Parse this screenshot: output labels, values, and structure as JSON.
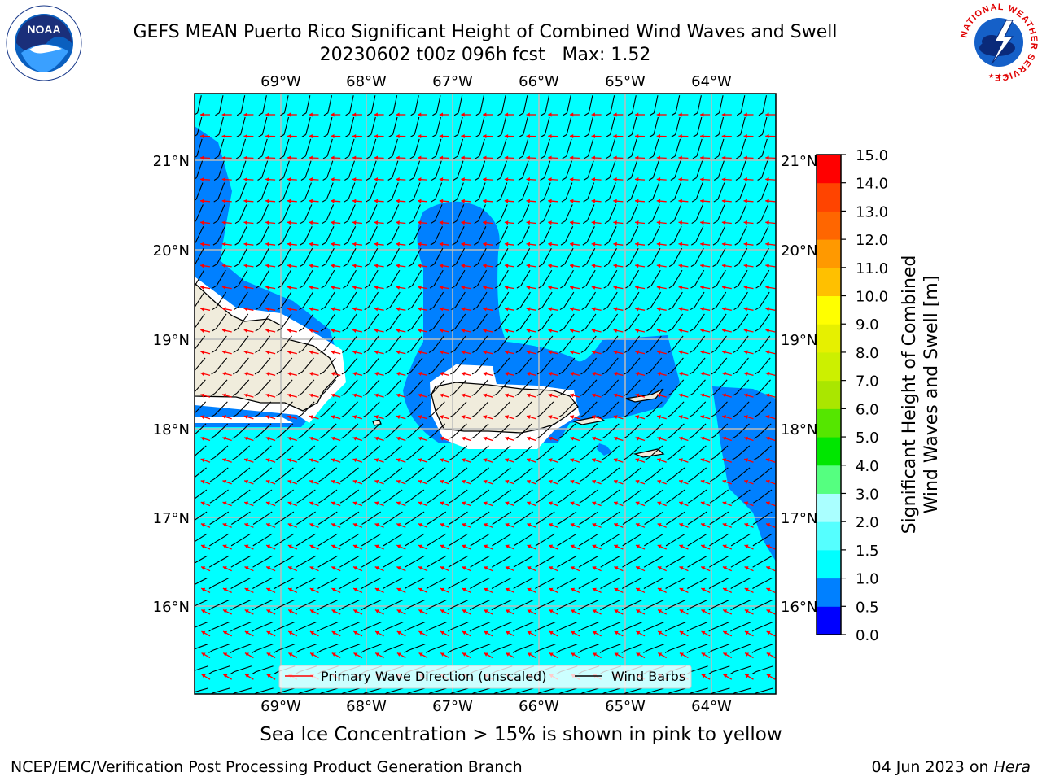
{
  "title": {
    "line1": "GEFS MEAN Puerto Rico Significant Height of Combined Wind Waves and Swell",
    "line2": "20230602 t00z 096h fcst   Max: 1.52"
  },
  "map": {
    "lon_labels": [
      "69°W",
      "68°W",
      "67°W",
      "66°W",
      "65°W",
      "64°W"
    ],
    "lat_labels": [
      "21°N",
      "20°N",
      "19°N",
      "18°N",
      "17°N",
      "16°N"
    ],
    "legend": {
      "wave_direction": "Primary Wave Direction (unscaled)",
      "wind_barbs": "Wind Barbs"
    },
    "colors": {
      "ocean_main": "#00ffff",
      "ocean_low": "#0080ff",
      "ocean_lowest": "#0000ff",
      "land": "#f0ecdc",
      "ice_free_coast": "#ffffff",
      "wave_arrow": "#ff0000",
      "wind_barb": "#000000"
    }
  },
  "colorbar": {
    "label_line1": "Significant Height of Combined",
    "label_line2": "Wind Waves and Swell [m]",
    "ticks": [
      "0.0",
      "0.5",
      "1.0",
      "1.5",
      "2.0",
      "3.0",
      "4.0",
      "5.0",
      "6.0",
      "7.0",
      "8.0",
      "9.0",
      "10.0",
      "11.0",
      "12.0",
      "13.0",
      "14.0",
      "15.0"
    ],
    "colors": [
      "#0000ff",
      "#0080ff",
      "#00ffff",
      "#55ffff",
      "#aaffff",
      "#55ff80",
      "#00e600",
      "#55e600",
      "#aae600",
      "#ccf000",
      "#e6f000",
      "#ffff00",
      "#ffc000",
      "#ff9900",
      "#ff6600",
      "#ff4400",
      "#ff0000"
    ]
  },
  "sea_ice_note": "Sea Ice Concentration > 15% is shown in pink to yellow",
  "footer": {
    "left": "NCEP/EMC/Verification Post Processing Product Generation Branch",
    "date": "04 Jun 2023 on ",
    "machine": "Hera"
  },
  "logos": {
    "noaa_text": "NOAA",
    "nws_ring_text": "NATIONAL WEATHER SERVICE"
  }
}
